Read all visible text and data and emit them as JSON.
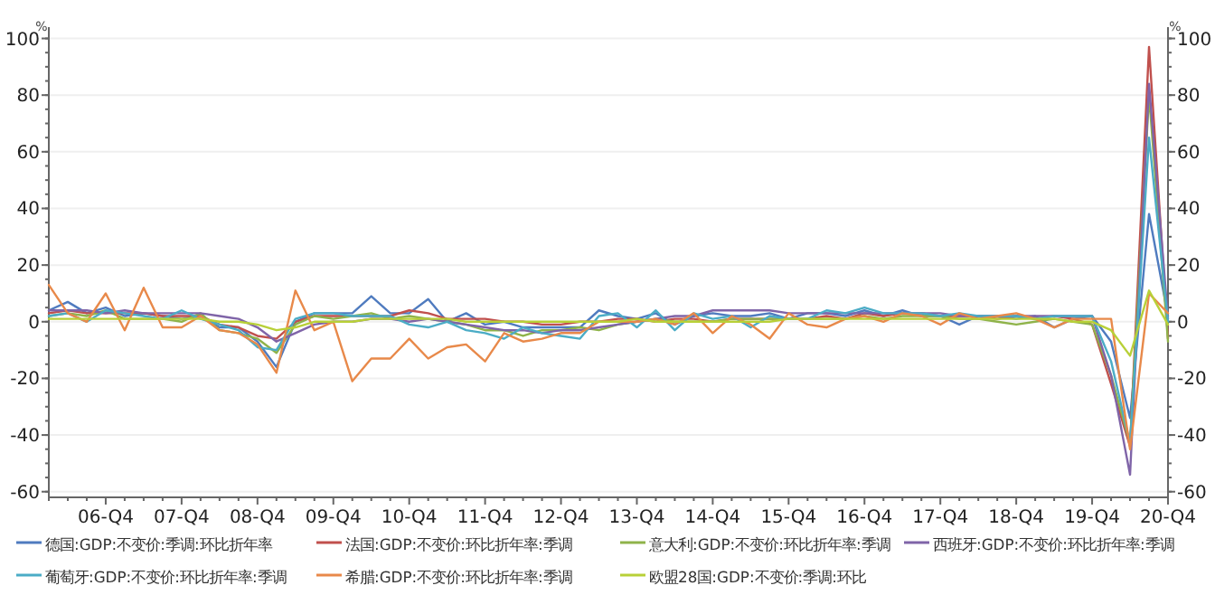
{
  "chart_data": {
    "type": "line",
    "ylabel": "%",
    "y2label": "%",
    "categories": [
      null,
      null,
      null,
      "06-Q4",
      null,
      null,
      null,
      "07-Q4",
      null,
      null,
      null,
      "08-Q4",
      null,
      null,
      null,
      "09-Q4",
      null,
      null,
      null,
      "10-Q4",
      null,
      null,
      null,
      "11-Q4",
      null,
      null,
      null,
      "12-Q4",
      null,
      null,
      null,
      "13-Q4",
      null,
      null,
      null,
      "14-Q4",
      null,
      null,
      null,
      "15-Q4",
      null,
      null,
      null,
      "16-Q4",
      null,
      null,
      null,
      "17-Q4",
      null,
      null,
      null,
      "18-Q4",
      null,
      null,
      null,
      "19-Q4",
      null,
      null,
      null,
      "20-Q4"
    ],
    "series": [
      {
        "name": "德国:GDP:不变价:季调:环比折年率",
        "color": "#4f7bbf",
        "values": [
          4,
          7,
          3,
          5,
          2,
          3,
          2,
          1,
          2,
          -2,
          -2,
          -7,
          -16,
          0,
          3,
          3,
          3,
          9,
          3,
          3,
          8,
          0,
          3,
          -1,
          0,
          -2,
          -2,
          -2,
          -2,
          4,
          2,
          1,
          3,
          -1,
          2,
          3,
          2,
          2,
          3,
          1,
          3,
          3,
          2,
          4,
          2,
          4,
          2,
          2,
          -1,
          2,
          2,
          1,
          2,
          -2,
          1,
          2,
          -7,
          -34,
          38,
          2
        ]
      },
      {
        "name": "法国:GDP:不变价:环比折年率:季调",
        "color": "#c0504d",
        "values": [
          3,
          4,
          3,
          3,
          3,
          3,
          2,
          2,
          2,
          -1,
          -2,
          -5,
          -6,
          0,
          2,
          2,
          2,
          2,
          2,
          4,
          3,
          1,
          1,
          1,
          0,
          0,
          -1,
          -1,
          0,
          0,
          1,
          1,
          0,
          1,
          1,
          0,
          1,
          1,
          1,
          1,
          1,
          2,
          1,
          3,
          2,
          3,
          3,
          2,
          2,
          2,
          1,
          2,
          1,
          2,
          1,
          -1,
          -22,
          -44,
          97,
          -6
        ]
      },
      {
        "name": "意大利:GDP:不变价:环比折年率:季调",
        "color": "#8fb34a",
        "values": [
          2,
          3,
          2,
          4,
          1,
          1,
          1,
          0,
          3,
          -3,
          -4,
          -6,
          -11,
          -1,
          2,
          1,
          2,
          3,
          1,
          2,
          1,
          0,
          -1,
          -3,
          -3,
          -5,
          -3,
          -3,
          -2,
          -3,
          -1,
          0,
          1,
          0,
          0,
          0,
          1,
          1,
          1,
          1,
          1,
          1,
          1,
          2,
          1,
          2,
          2,
          2,
          1,
          1,
          0,
          -1,
          0,
          1,
          0,
          -1,
          -19,
          -43,
          80,
          -7
        ]
      },
      {
        "name": "西班牙:GDP:不变价:环比折年率:季调",
        "color": "#7f64a8",
        "values": [
          4,
          4,
          4,
          3,
          4,
          3,
          3,
          3,
          3,
          2,
          1,
          -2,
          -7,
          -4,
          -1,
          0,
          0,
          1,
          1,
          0,
          1,
          0,
          -1,
          -2,
          -3,
          -3,
          -4,
          -3,
          -3,
          -2,
          -1,
          0,
          1,
          2,
          2,
          4,
          4,
          4,
          4,
          3,
          3,
          3,
          3,
          3,
          3,
          3,
          3,
          3,
          2,
          2,
          2,
          2,
          2,
          2,
          2,
          2,
          -19,
          -54,
          84,
          1
        ]
      },
      {
        "name": "葡萄牙:GDP:不变价:环比折年率:季调",
        "color": "#4bacc6",
        "values": [
          2,
          3,
          0,
          4,
          3,
          2,
          1,
          4,
          1,
          -1,
          -3,
          -9,
          -10,
          1,
          3,
          3,
          2,
          2,
          2,
          -1,
          -2,
          0,
          -3,
          -4,
          -6,
          -2,
          -4,
          -5,
          -6,
          2,
          3,
          -2,
          4,
          -3,
          3,
          1,
          2,
          -2,
          2,
          1,
          1,
          4,
          3,
          5,
          3,
          3,
          3,
          2,
          3,
          2,
          2,
          2,
          1,
          2,
          2,
          2,
          -14,
          -43,
          65,
          0
        ]
      },
      {
        "name": "希腊:GDP:不变价:环比折年率:季调",
        "color": "#e8894a",
        "values": [
          13,
          3,
          0,
          10,
          -3,
          12,
          -2,
          -2,
          2,
          -3,
          -4,
          -8,
          -18,
          11,
          -3,
          0,
          -21,
          -13,
          -13,
          -6,
          -13,
          -9,
          -8,
          -14,
          -4,
          -7,
          -6,
          -4,
          -4,
          0,
          0,
          0,
          1,
          -1,
          3,
          -4,
          2,
          -1,
          -6,
          3,
          -1,
          -2,
          1,
          2,
          0,
          3,
          2,
          -1,
          3,
          1,
          2,
          3,
          1,
          -2,
          1,
          1,
          1,
          -45,
          10,
          3
        ]
      },
      {
        "name": "欧盟28国:GDP:不变价:季调:环比",
        "color": "#b8d038",
        "values": [
          1,
          1,
          1,
          1,
          1,
          1,
          1,
          1,
          1,
          0,
          0,
          -1,
          -3,
          -2,
          0,
          0,
          0,
          1,
          1,
          1,
          1,
          1,
          0,
          0,
          0,
          0,
          0,
          0,
          0,
          0,
          0,
          1,
          0,
          0,
          0,
          0,
          0,
          0,
          0,
          1,
          1,
          1,
          1,
          1,
          1,
          1,
          1,
          1,
          1,
          1,
          1,
          1,
          1,
          1,
          0,
          0,
          -3,
          -12,
          11,
          -1
        ]
      }
    ],
    "ylim": [
      -62,
      104
    ],
    "yticks": [
      -60,
      -40,
      -20,
      0,
      20,
      40,
      60,
      80,
      100
    ],
    "y2lim": [
      -62,
      104
    ],
    "y2ticks": [
      -60,
      -40,
      -20,
      0,
      20,
      40,
      60,
      80,
      100
    ],
    "grid": "y",
    "legend": "bottom",
    "line_style": "solid",
    "marker": "none"
  }
}
